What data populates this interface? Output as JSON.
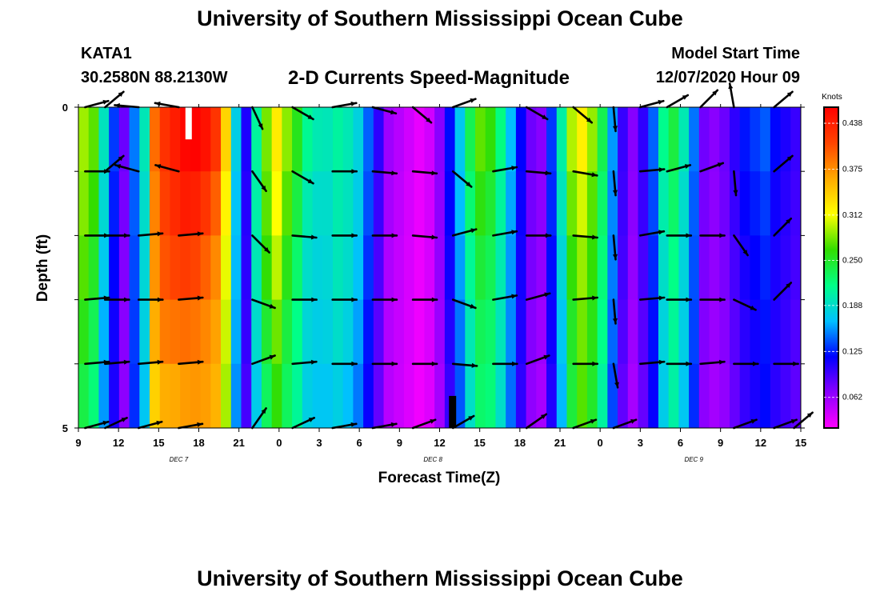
{
  "header": {
    "title": "University of Southern Mississippi Ocean Cube",
    "station": "KATA1",
    "coordinates": "30.2580N 88.2130W",
    "subtitle": "2-D Currents Speed-Magnitude",
    "start_label": "Model Start Time",
    "start_value": "12/07/2020 Hour 09"
  },
  "footer": {
    "title": "University of Southern Mississippi Ocean Cube"
  },
  "chart_data": {
    "type": "heatmap",
    "title": "2-D Currents Speed-Magnitude",
    "xlabel": "Forecast Time(Z)",
    "ylabel": "Depth (ft)",
    "x_tick_labels": [
      "9",
      "12",
      "15",
      "18",
      "21",
      "0",
      "3",
      "6",
      "9",
      "12",
      "15",
      "18",
      "21",
      "0",
      "3",
      "6",
      "9",
      "12",
      "15"
    ],
    "x_range_hours": [
      0,
      54
    ],
    "day_labels": [
      {
        "text": "DEC 7",
        "hour": 7.5
      },
      {
        "text": "DEC 8",
        "hour": 26.5
      },
      {
        "text": "DEC 9",
        "hour": 46
      }
    ],
    "y_tick_labels": [
      "0",
      "5"
    ],
    "y_range_ft": [
      0,
      5
    ],
    "colorbar": {
      "unit": "Knots",
      "ticks": [
        "0.438",
        "0.375",
        "0.312",
        "0.250",
        "0.188",
        "0.125",
        "0.062"
      ],
      "range": [
        0.02,
        0.46
      ]
    },
    "colors": {
      "scale": [
        "#ff00ff",
        "#8b00ff",
        "#0000ff",
        "#00c0ff",
        "#00ff88",
        "#33dd00",
        "#ffff00",
        "#ffaa00",
        "#ff4400",
        "#ff0000"
      ],
      "arrow": "#000000",
      "mask_light": "#ffffff",
      "mask_dark": "#000000"
    },
    "speed_profile_knots": [
      0.29,
      0.27,
      0.19,
      0.13,
      0.08,
      0.15,
      0.2,
      0.4,
      0.43,
      0.44,
      0.45,
      0.45,
      0.44,
      0.42,
      0.34,
      0.18,
      0.11,
      0.21,
      0.28,
      0.32,
      0.28,
      0.25,
      0.21,
      0.2,
      0.2,
      0.21,
      0.2,
      0.18,
      0.14,
      0.1,
      0.06,
      0.05,
      0.04,
      0.03,
      0.04,
      0.07,
      0.12,
      0.17,
      0.23,
      0.27,
      0.26,
      0.22,
      0.17,
      0.12,
      0.08,
      0.07,
      0.13,
      0.2,
      0.29,
      0.32,
      0.29,
      0.24,
      0.16,
      0.1,
      0.07,
      0.1,
      0.14,
      0.21,
      0.24,
      0.2,
      0.15,
      0.08,
      0.07,
      0.08,
      0.1,
      0.12,
      0.13,
      0.14,
      0.12,
      0.11,
      0.1
    ],
    "arrow_hours": [
      0.5,
      2,
      4.5,
      7.5,
      10.5,
      13,
      16,
      19,
      22,
      25,
      28,
      31,
      33.5,
      37,
      40,
      42,
      44,
      46.5,
      49,
      52,
      53.5
    ],
    "arrow_depths_ft": [
      0,
      1,
      2,
      3,
      4,
      5
    ],
    "arrows_note": "current direction vectors in degrees (0 = east, positive = clockwise/downward on plot); null where no vector is drawn",
    "arrow_angles_deg": [
      [
        -15,
        -40,
        -175,
        -170,
        null,
        65,
        30,
        -10,
        15,
        40,
        -20,
        null,
        30,
        40,
        85,
        -15,
        -30,
        -45,
        -100,
        -40,
        null
      ],
      [
        0,
        -40,
        -165,
        -165,
        null,
        55,
        30,
        0,
        5,
        5,
        40,
        -10,
        5,
        10,
        85,
        -5,
        -15,
        -20,
        85,
        -40,
        null
      ],
      [
        0,
        0,
        -5,
        -5,
        null,
        45,
        5,
        0,
        0,
        5,
        -15,
        -10,
        0,
        5,
        85,
        -10,
        0,
        0,
        55,
        -45,
        null
      ],
      [
        -5,
        0,
        0,
        -5,
        null,
        20,
        0,
        0,
        0,
        0,
        20,
        -10,
        -15,
        -5,
        85,
        -5,
        0,
        0,
        25,
        -45,
        null
      ],
      [
        -5,
        -5,
        -5,
        -5,
        null,
        -20,
        -5,
        0,
        0,
        0,
        5,
        0,
        -20,
        0,
        80,
        -5,
        0,
        -5,
        0,
        0,
        null
      ],
      [
        -15,
        -25,
        -15,
        -10,
        null,
        -55,
        -25,
        -10,
        -10,
        -20,
        -30,
        null,
        -35,
        -20,
        -20,
        null,
        null,
        null,
        -20,
        -20,
        -40
      ]
    ]
  }
}
